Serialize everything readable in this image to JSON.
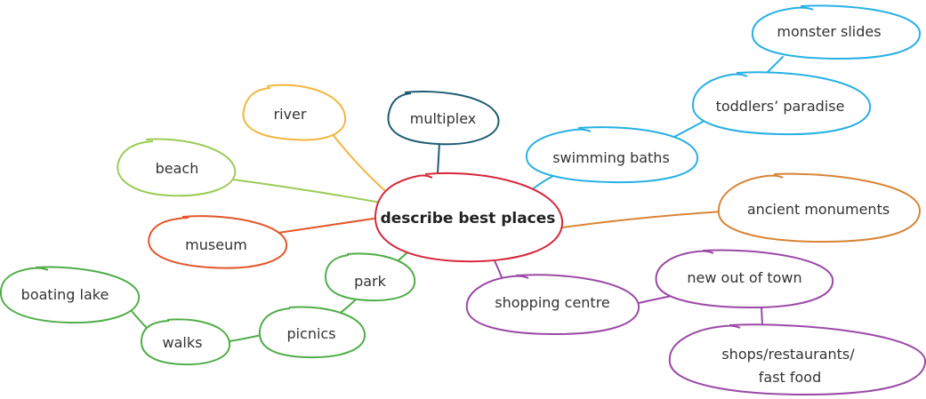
{
  "colors": {
    "center": "#d6283a",
    "river": "#f2b63c",
    "beach": "#9ccb57",
    "museum": "#e4562a",
    "multiplex": "#1f5c73",
    "swimming": "#27b0e4",
    "ancient": "#d98436",
    "shopping": "#9b4aa6",
    "park": "#4fae48"
  },
  "center": {
    "label": "describe best places"
  },
  "nodes": {
    "river": "river",
    "beach": "beach",
    "museum": "museum",
    "multiplex": "multiplex",
    "swimming_baths": "swimming baths",
    "toddlers_paradise": "toddlers’ paradise",
    "monster_slides": "monster slides",
    "ancient_monuments": "ancient monuments",
    "shopping_centre": "shopping centre",
    "new_out_of_town": "new out of town",
    "shops_line1": "shops/restaurants/",
    "shops_line2": "fast food",
    "park": "park",
    "picnics": "picnics",
    "walks": "walks",
    "boating_lake": "boating lake"
  }
}
